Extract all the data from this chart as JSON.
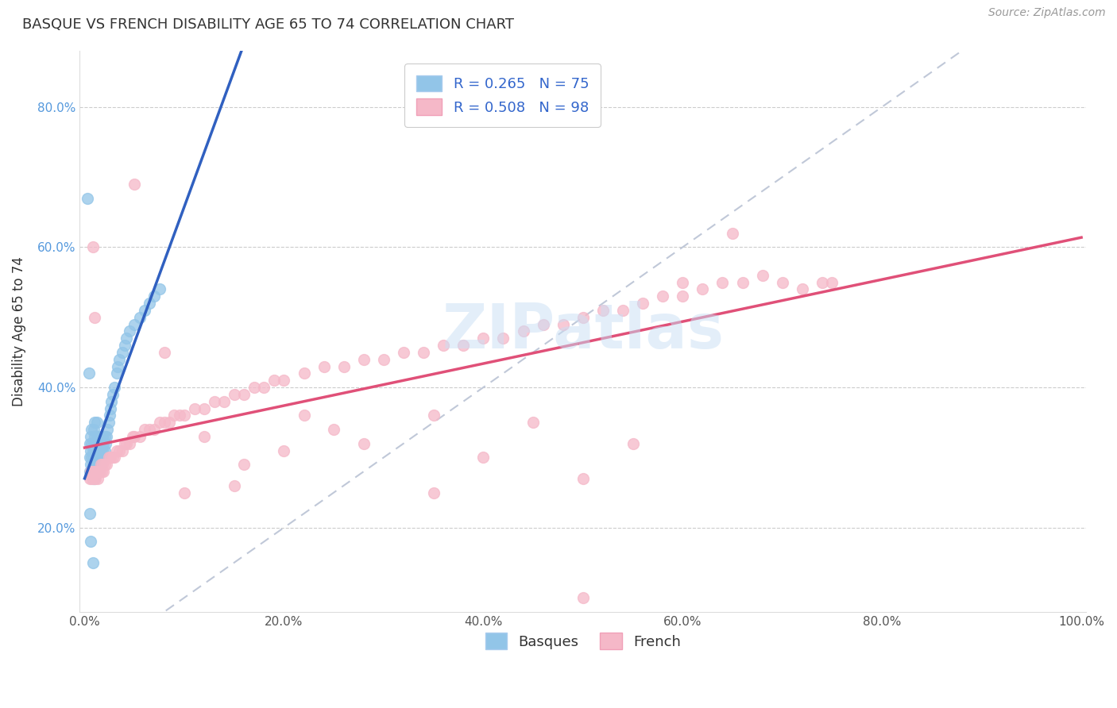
{
  "title": "BASQUE VS FRENCH DISABILITY AGE 65 TO 74 CORRELATION CHART",
  "source_text": "Source: ZipAtlas.com",
  "ylabel": "Disability Age 65 to 74",
  "xlabel": "",
  "watermark": "ZIPatlas",
  "xlim": [
    -0.005,
    1.005
  ],
  "ylim": [
    0.08,
    0.88
  ],
  "xticks": [
    0.0,
    0.2,
    0.4,
    0.6,
    0.8,
    1.0
  ],
  "yticks": [
    0.2,
    0.4,
    0.6,
    0.8
  ],
  "xticklabels": [
    "0.0%",
    "20.0%",
    "40.0%",
    "60.0%",
    "80.0%",
    "100.0%"
  ],
  "yticklabels": [
    "20.0%",
    "40.0%",
    "60.0%",
    "80.0%"
  ],
  "basque_R": 0.265,
  "basque_N": 75,
  "french_R": 0.508,
  "french_N": 98,
  "basque_color": "#92c5e8",
  "french_color": "#f5b8c8",
  "basque_line_color": "#3060c0",
  "french_line_color": "#e05078",
  "ref_line_color": "#c0c8d8",
  "basque_x": [
    0.005,
    0.005,
    0.005,
    0.006,
    0.006,
    0.006,
    0.007,
    0.007,
    0.007,
    0.007,
    0.008,
    0.008,
    0.008,
    0.009,
    0.009,
    0.009,
    0.009,
    0.01,
    0.01,
    0.01,
    0.01,
    0.01,
    0.011,
    0.011,
    0.011,
    0.012,
    0.012,
    0.012,
    0.012,
    0.013,
    0.013,
    0.013,
    0.014,
    0.014,
    0.014,
    0.015,
    0.015,
    0.015,
    0.016,
    0.016,
    0.017,
    0.017,
    0.018,
    0.018,
    0.019,
    0.019,
    0.02,
    0.02,
    0.021,
    0.022,
    0.023,
    0.024,
    0.025,
    0.026,
    0.027,
    0.028,
    0.03,
    0.032,
    0.033,
    0.035,
    0.038,
    0.04,
    0.042,
    0.045,
    0.05,
    0.055,
    0.06,
    0.065,
    0.07,
    0.075,
    0.003,
    0.004,
    0.005,
    0.006,
    0.008
  ],
  "basque_y": [
    0.28,
    0.3,
    0.32,
    0.29,
    0.31,
    0.33,
    0.28,
    0.3,
    0.32,
    0.34,
    0.27,
    0.29,
    0.31,
    0.28,
    0.3,
    0.32,
    0.34,
    0.27,
    0.29,
    0.31,
    0.33,
    0.35,
    0.28,
    0.3,
    0.32,
    0.29,
    0.31,
    0.33,
    0.35,
    0.28,
    0.3,
    0.32,
    0.29,
    0.31,
    0.33,
    0.28,
    0.3,
    0.32,
    0.29,
    0.31,
    0.3,
    0.32,
    0.31,
    0.33,
    0.3,
    0.32,
    0.31,
    0.33,
    0.32,
    0.33,
    0.34,
    0.35,
    0.36,
    0.37,
    0.38,
    0.39,
    0.4,
    0.42,
    0.43,
    0.44,
    0.45,
    0.46,
    0.47,
    0.48,
    0.49,
    0.5,
    0.51,
    0.52,
    0.53,
    0.54,
    0.67,
    0.42,
    0.22,
    0.18,
    0.15
  ],
  "french_x": [
    0.005,
    0.006,
    0.007,
    0.008,
    0.009,
    0.01,
    0.011,
    0.012,
    0.013,
    0.014,
    0.015,
    0.016,
    0.017,
    0.018,
    0.019,
    0.02,
    0.022,
    0.024,
    0.026,
    0.028,
    0.03,
    0.032,
    0.035,
    0.038,
    0.04,
    0.042,
    0.045,
    0.048,
    0.05,
    0.055,
    0.06,
    0.065,
    0.07,
    0.075,
    0.08,
    0.085,
    0.09,
    0.095,
    0.1,
    0.11,
    0.12,
    0.13,
    0.14,
    0.15,
    0.16,
    0.17,
    0.18,
    0.19,
    0.2,
    0.22,
    0.24,
    0.26,
    0.28,
    0.3,
    0.32,
    0.34,
    0.36,
    0.38,
    0.4,
    0.42,
    0.44,
    0.46,
    0.48,
    0.5,
    0.52,
    0.54,
    0.56,
    0.58,
    0.6,
    0.62,
    0.64,
    0.66,
    0.68,
    0.7,
    0.72,
    0.74,
    0.35,
    0.4,
    0.45,
    0.5,
    0.1,
    0.15,
    0.2,
    0.25,
    0.05,
    0.08,
    0.12,
    0.16,
    0.22,
    0.28,
    0.35,
    0.55,
    0.65,
    0.75,
    0.008,
    0.01,
    0.5,
    0.6
  ],
  "french_y": [
    0.27,
    0.28,
    0.27,
    0.28,
    0.27,
    0.28,
    0.27,
    0.28,
    0.27,
    0.28,
    0.28,
    0.29,
    0.28,
    0.29,
    0.28,
    0.29,
    0.29,
    0.3,
    0.3,
    0.3,
    0.3,
    0.31,
    0.31,
    0.31,
    0.32,
    0.32,
    0.32,
    0.33,
    0.33,
    0.33,
    0.34,
    0.34,
    0.34,
    0.35,
    0.35,
    0.35,
    0.36,
    0.36,
    0.36,
    0.37,
    0.37,
    0.38,
    0.38,
    0.39,
    0.39,
    0.4,
    0.4,
    0.41,
    0.41,
    0.42,
    0.43,
    0.43,
    0.44,
    0.44,
    0.45,
    0.45,
    0.46,
    0.46,
    0.47,
    0.47,
    0.48,
    0.49,
    0.49,
    0.5,
    0.51,
    0.51,
    0.52,
    0.53,
    0.53,
    0.54,
    0.55,
    0.55,
    0.56,
    0.55,
    0.54,
    0.55,
    0.36,
    0.3,
    0.35,
    0.27,
    0.25,
    0.26,
    0.31,
    0.34,
    0.69,
    0.45,
    0.33,
    0.29,
    0.36,
    0.32,
    0.25,
    0.32,
    0.62,
    0.55,
    0.6,
    0.5,
    0.1,
    0.55
  ]
}
